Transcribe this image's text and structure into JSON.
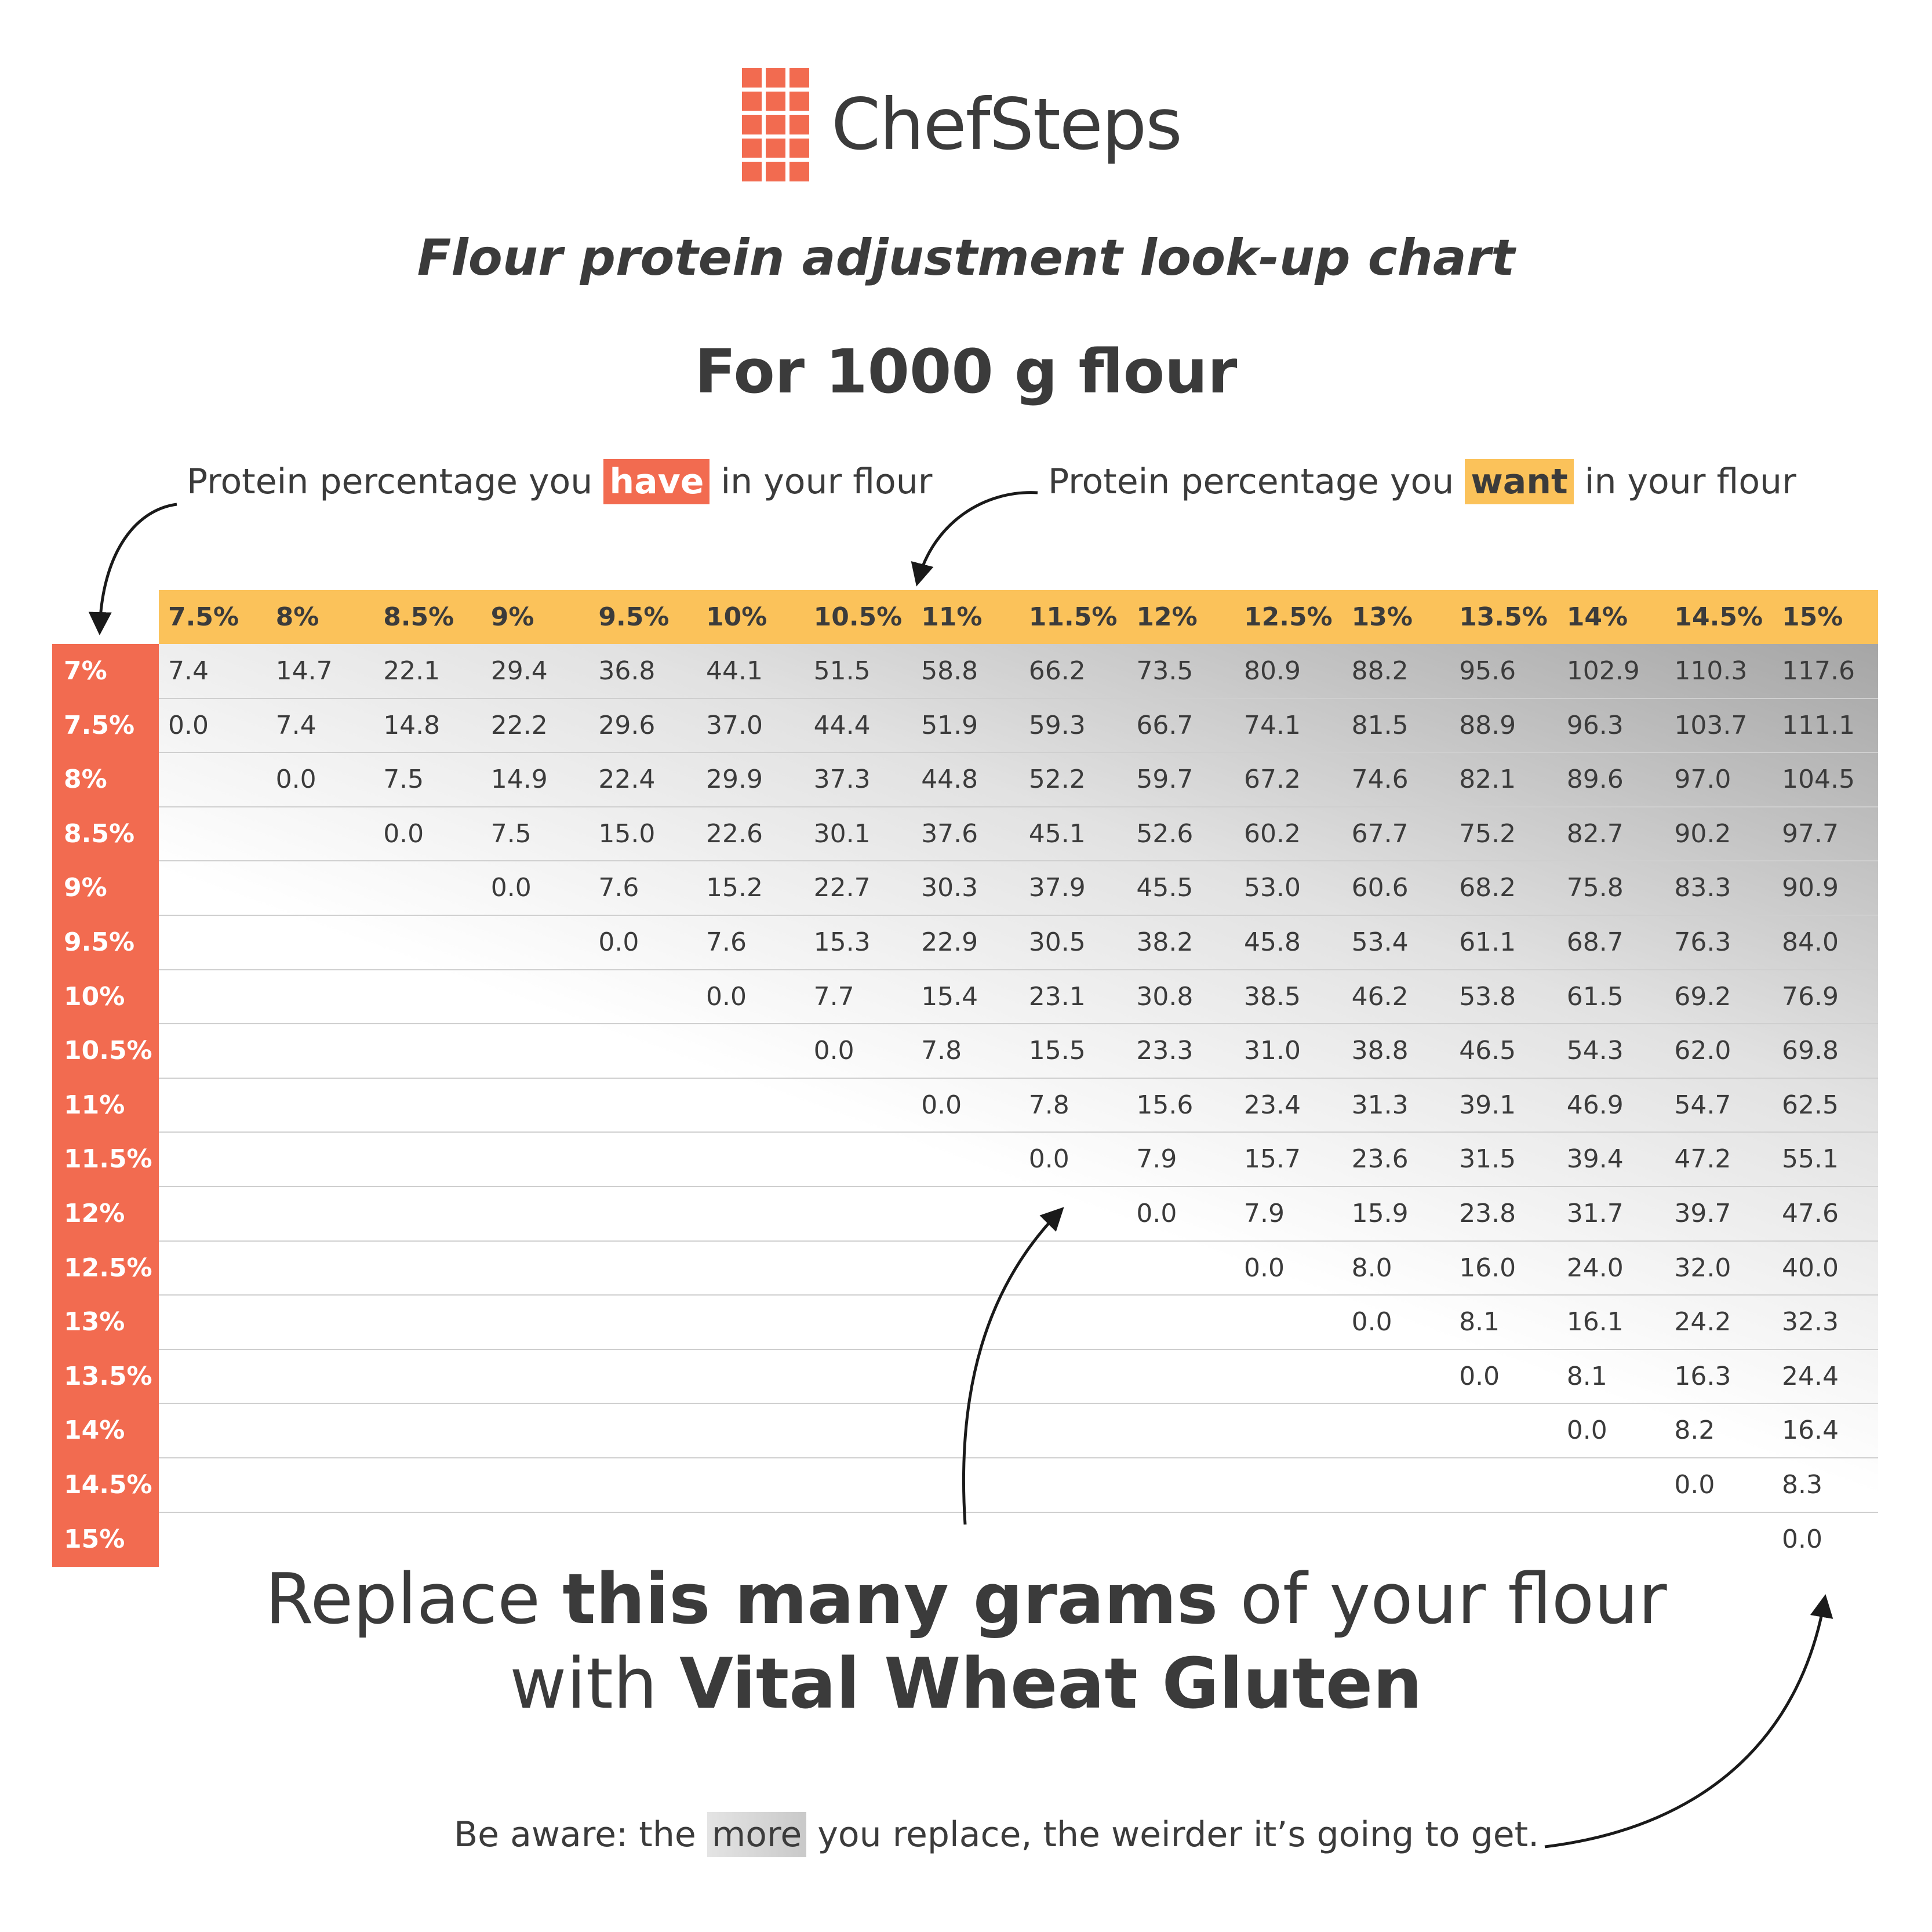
{
  "brand": {
    "name": "ChefSteps",
    "color": "#f26b50"
  },
  "subtitle": "Flour protein adjustment look-up chart",
  "title": "For 1000 g flour",
  "notes": {
    "have": {
      "before": "Protein percentage you",
      "highlight": "have",
      "after": "in your flour"
    },
    "want": {
      "before": "Protein percentage you",
      "highlight": "want",
      "after": "in your flour"
    }
  },
  "caption": {
    "line1_a": "Replace ",
    "line1_b": "this many grams",
    "line1_c": " of your flour",
    "line2_a": "with ",
    "line2_b": "Vital Wheat Gluten"
  },
  "footer": {
    "before": "Be aware: the ",
    "highlight": "more",
    "after": " you replace, the weirder it’s going to get."
  },
  "colors": {
    "have": "#f26b50",
    "want": "#fbc25a",
    "text": "#3b3b3b"
  },
  "chart_data": {
    "type": "table",
    "columns": [
      "7.5%",
      "8%",
      "8.5%",
      "9%",
      "9.5%",
      "10%",
      "10.5%",
      "11%",
      "11.5%",
      "12%",
      "12.5%",
      "13%",
      "13.5%",
      "14%",
      "14.5%",
      "15%"
    ],
    "rows": [
      {
        "label": "7%",
        "values": [
          "7.4",
          "14.7",
          "22.1",
          "29.4",
          "36.8",
          "44.1",
          "51.5",
          "58.8",
          "66.2",
          "73.5",
          "80.9",
          "88.2",
          "95.6",
          "102.9",
          "110.3",
          "117.6"
        ]
      },
      {
        "label": "7.5%",
        "values": [
          "0.0",
          "7.4",
          "14.8",
          "22.2",
          "29.6",
          "37.0",
          "44.4",
          "51.9",
          "59.3",
          "66.7",
          "74.1",
          "81.5",
          "88.9",
          "96.3",
          "103.7",
          "111.1"
        ]
      },
      {
        "label": "8%",
        "values": [
          "",
          "0.0",
          "7.5",
          "14.9",
          "22.4",
          "29.9",
          "37.3",
          "44.8",
          "52.2",
          "59.7",
          "67.2",
          "74.6",
          "82.1",
          "89.6",
          "97.0",
          "104.5"
        ]
      },
      {
        "label": "8.5%",
        "values": [
          "",
          "",
          "0.0",
          "7.5",
          "15.0",
          "22.6",
          "30.1",
          "37.6",
          "45.1",
          "52.6",
          "60.2",
          "67.7",
          "75.2",
          "82.7",
          "90.2",
          "97.7"
        ]
      },
      {
        "label": "9%",
        "values": [
          "",
          "",
          "",
          "0.0",
          "7.6",
          "15.2",
          "22.7",
          "30.3",
          "37.9",
          "45.5",
          "53.0",
          "60.6",
          "68.2",
          "75.8",
          "83.3",
          "90.9"
        ]
      },
      {
        "label": "9.5%",
        "values": [
          "",
          "",
          "",
          "",
          "0.0",
          "7.6",
          "15.3",
          "22.9",
          "30.5",
          "38.2",
          "45.8",
          "53.4",
          "61.1",
          "68.7",
          "76.3",
          "84.0"
        ]
      },
      {
        "label": "10%",
        "values": [
          "",
          "",
          "",
          "",
          "",
          "0.0",
          "7.7",
          "15.4",
          "23.1",
          "30.8",
          "38.5",
          "46.2",
          "53.8",
          "61.5",
          "69.2",
          "76.9"
        ]
      },
      {
        "label": "10.5%",
        "values": [
          "",
          "",
          "",
          "",
          "",
          "",
          "0.0",
          "7.8",
          "15.5",
          "23.3",
          "31.0",
          "38.8",
          "46.5",
          "54.3",
          "62.0",
          "69.8"
        ]
      },
      {
        "label": "11%",
        "values": [
          "",
          "",
          "",
          "",
          "",
          "",
          "",
          "0.0",
          "7.8",
          "15.6",
          "23.4",
          "31.3",
          "39.1",
          "46.9",
          "54.7",
          "62.5"
        ]
      },
      {
        "label": "11.5%",
        "values": [
          "",
          "",
          "",
          "",
          "",
          "",
          "",
          "",
          "0.0",
          "7.9",
          "15.7",
          "23.6",
          "31.5",
          "39.4",
          "47.2",
          "55.1"
        ]
      },
      {
        "label": "12%",
        "values": [
          "",
          "",
          "",
          "",
          "",
          "",
          "",
          "",
          "",
          "0.0",
          "7.9",
          "15.9",
          "23.8",
          "31.7",
          "39.7",
          "47.6"
        ]
      },
      {
        "label": "12.5%",
        "values": [
          "",
          "",
          "",
          "",
          "",
          "",
          "",
          "",
          "",
          "",
          "0.0",
          "8.0",
          "16.0",
          "24.0",
          "32.0",
          "40.0"
        ]
      },
      {
        "label": "13%",
        "values": [
          "",
          "",
          "",
          "",
          "",
          "",
          "",
          "",
          "",
          "",
          "",
          "0.0",
          "8.1",
          "16.1",
          "24.2",
          "32.3"
        ]
      },
      {
        "label": "13.5%",
        "values": [
          "",
          "",
          "",
          "",
          "",
          "",
          "",
          "",
          "",
          "",
          "",
          "",
          "0.0",
          "8.1",
          "16.3",
          "24.4"
        ]
      },
      {
        "label": "14%",
        "values": [
          "",
          "",
          "",
          "",
          "",
          "",
          "",
          "",
          "",
          "",
          "",
          "",
          "",
          "0.0",
          "8.2",
          "16.4"
        ]
      },
      {
        "label": "14.5%",
        "values": [
          "",
          "",
          "",
          "",
          "",
          "",
          "",
          "",
          "",
          "",
          "",
          "",
          "",
          "",
          "0.0",
          "8.3"
        ]
      },
      {
        "label": "15%",
        "values": [
          "",
          "",
          "",
          "",
          "",
          "",
          "",
          "",
          "",
          "",
          "",
          "",
          "",
          "",
          "",
          "0.0"
        ]
      }
    ]
  }
}
